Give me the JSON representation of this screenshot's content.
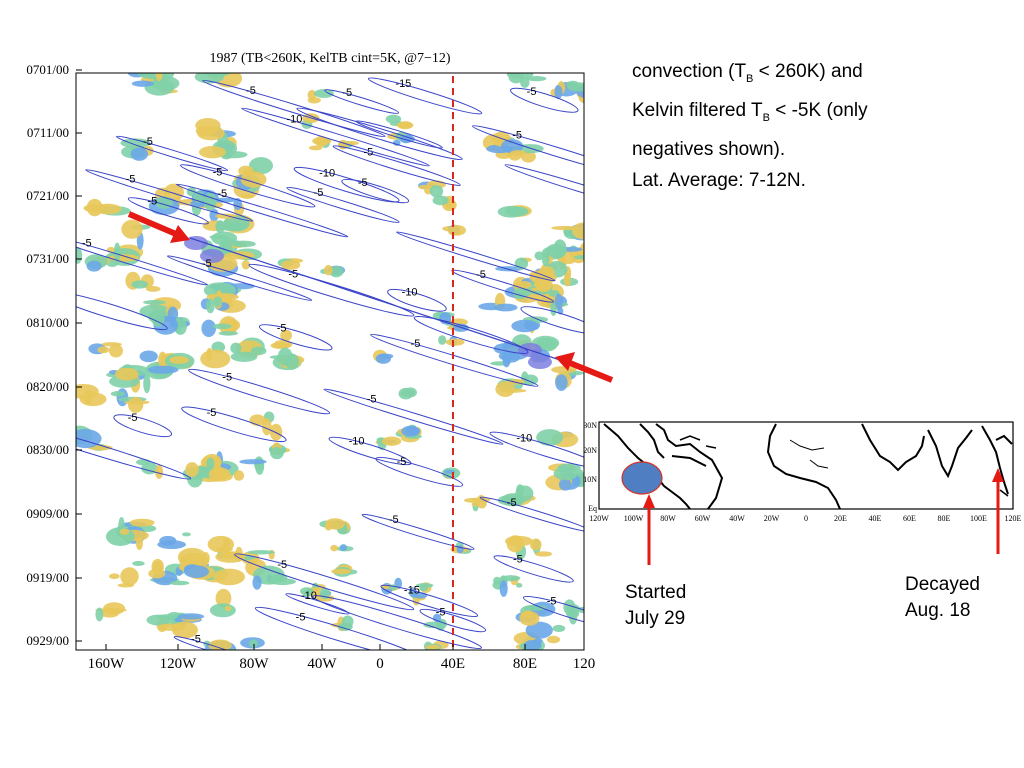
{
  "caption": {
    "line1_pre": "convection (T",
    "line1_sub": "B",
    "line1_post": " < 260K) and",
    "line2_pre": "Kelvin filtered T",
    "line2_sub": "B",
    "line2_post": " < -5K (only",
    "line3": "negatives shown).",
    "line4": "Lat. Average: 7-12N."
  },
  "notes": {
    "started": [
      "Started",
      "July 29"
    ],
    "decayed": [
      "Decayed",
      "Aug. 18"
    ]
  },
  "colors": {
    "contour": "#3a45c8",
    "dashed_line": "#e0251b",
    "arrow": "#e61a14",
    "convection_low": "#e8c85a",
    "convection_mid": "#7fd0a8",
    "convection_high": "#6aa7e8",
    "convection_peak": "#7c7fe0",
    "region_fill": "#4f7ec2"
  },
  "chart_data": [
    {
      "type": "heatmap",
      "title": "1987 (TB<260K, KelTB cint=5K, @7−12)",
      "xlabel": "",
      "ylabel": "",
      "x_ticks": [
        "160W",
        "120W",
        "80W",
        "40W",
        "0",
        "40E",
        "80E",
        "120"
      ],
      "y_ticks": [
        "0701/00",
        "0711/00",
        "0721/00",
        "0731/00",
        "0810/00",
        "0820/00",
        "0830/00",
        "0909/00",
        "0919/00",
        "0929/00"
      ],
      "xlim": [
        -180,
        120
      ],
      "x_units": "degrees longitude (negative = W)",
      "time_axis": "time increases downward",
      "reference_line": {
        "x": 42,
        "style": "dashed",
        "color": "#e0251b"
      },
      "contour_labels": [
        "-5",
        "-10",
        "-15"
      ],
      "kelvin_wave_track": {
        "start": "0725",
        "end": "0814",
        "lon_start": -115,
        "lon_end": 95
      }
    },
    {
      "type": "map",
      "x_ticks": [
        "120W",
        "100W",
        "80W",
        "60W",
        "40W",
        "20W",
        "0",
        "20E",
        "40E",
        "60E",
        "80E",
        "100E",
        "120E"
      ],
      "y_ticks": [
        "30N",
        "20N",
        "10N",
        "Eq"
      ],
      "highlight_region": "eastern Pacific near 100W, ~10N",
      "arrows": [
        "Started July 29 at ~95W",
        "Decayed Aug. 18 at ~115E"
      ]
    }
  ]
}
